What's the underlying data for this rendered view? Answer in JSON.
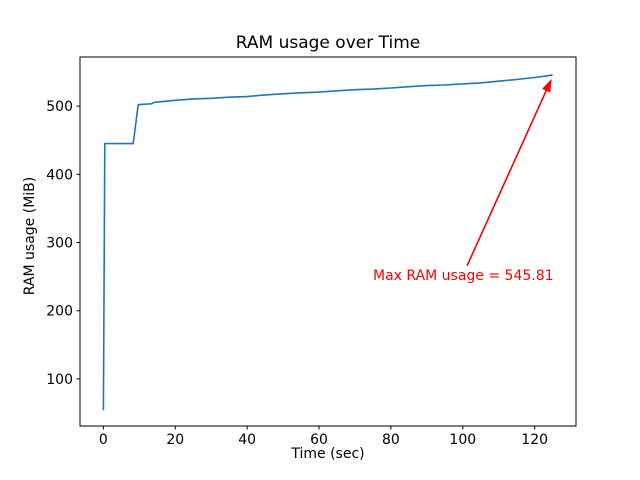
{
  "figure": {
    "title": "RAM usage over Time",
    "xlabel": "Time (sec)",
    "ylabel": "RAM usage (MiB)"
  },
  "chart_data": {
    "type": "line",
    "title": "RAM usage over Time",
    "xlabel": "Time (sec)",
    "ylabel": "RAM usage (MiB)",
    "series": [
      {
        "name": "RAM usage",
        "x": [
          0,
          0.4,
          8.3,
          9.7,
          13.5,
          14,
          20,
          25,
          30,
          35,
          40,
          45,
          50,
          55,
          60,
          65,
          70,
          75,
          80,
          85,
          90,
          95,
          100,
          105,
          110,
          115,
          120,
          123,
          125
        ],
        "y": [
          54,
          445,
          445,
          502,
          503.5,
          505.5,
          508.5,
          510.5,
          511.5,
          513,
          514,
          516.5,
          518,
          519.5,
          520.5,
          522.5,
          524,
          525,
          526.5,
          528.5,
          530,
          531,
          532.5,
          534,
          536.5,
          539,
          542,
          544,
          545.81
        ]
      }
    ],
    "xlim": [
      -6.5,
      131.5
    ],
    "ylim": [
      31,
      572
    ],
    "xticks": [
      0,
      20,
      40,
      60,
      80,
      100,
      120
    ],
    "yticks": [
      100,
      200,
      300,
      400,
      500
    ],
    "grid": false,
    "legend": null,
    "max_ram_usage": 545.81,
    "annotation": {
      "text": "Max RAM usage = 545.81",
      "text_pos": [
        75,
        263
      ],
      "arrow_from": [
        101.2,
        266
      ],
      "arrow_to": [
        124.7,
        540
      ]
    }
  },
  "colors": {
    "line": "#1f77b4",
    "annotation": "#ff0000",
    "axes": "#000000",
    "background": "#ffffff"
  }
}
